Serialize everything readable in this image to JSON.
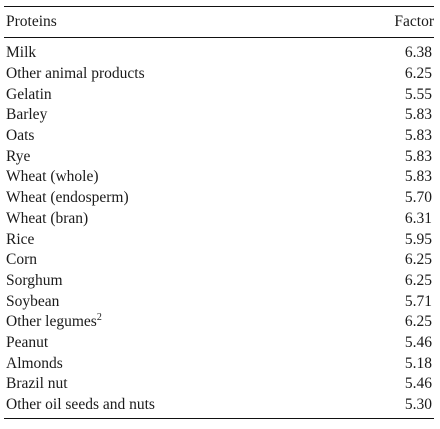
{
  "table": {
    "headers": {
      "proteins": "Proteins",
      "factor": "Factor"
    },
    "rows": [
      {
        "name": "Milk",
        "sup": "",
        "factor": "6.38"
      },
      {
        "name": "Other animal products",
        "sup": "",
        "factor": "6.25"
      },
      {
        "name": "Gelatin",
        "sup": "",
        "factor": "5.55"
      },
      {
        "name": "Barley",
        "sup": "",
        "factor": "5.83"
      },
      {
        "name": "Oats",
        "sup": "",
        "factor": "5.83"
      },
      {
        "name": "Rye",
        "sup": "",
        "factor": "5.83"
      },
      {
        "name": "Wheat (whole)",
        "sup": "",
        "factor": "5.83"
      },
      {
        "name": "Wheat (endosperm)",
        "sup": "",
        "factor": "5.70"
      },
      {
        "name": "Wheat (bran)",
        "sup": "",
        "factor": "6.31"
      },
      {
        "name": "Rice",
        "sup": "",
        "factor": "5.95"
      },
      {
        "name": "Corn",
        "sup": "",
        "factor": "6.25"
      },
      {
        "name": "Sorghum",
        "sup": "",
        "factor": "6.25"
      },
      {
        "name": "Soybean",
        "sup": "",
        "factor": "5.71"
      },
      {
        "name": "Other legumes",
        "sup": "2",
        "factor": "6.25"
      },
      {
        "name": "Peanut",
        "sup": "",
        "factor": "5.46"
      },
      {
        "name": "Almonds",
        "sup": "",
        "factor": "5.18"
      },
      {
        "name": "Brazil nut",
        "sup": "",
        "factor": "5.46"
      },
      {
        "name": "Other oil seeds and nuts",
        "sup": "",
        "factor": "5.30"
      }
    ]
  }
}
